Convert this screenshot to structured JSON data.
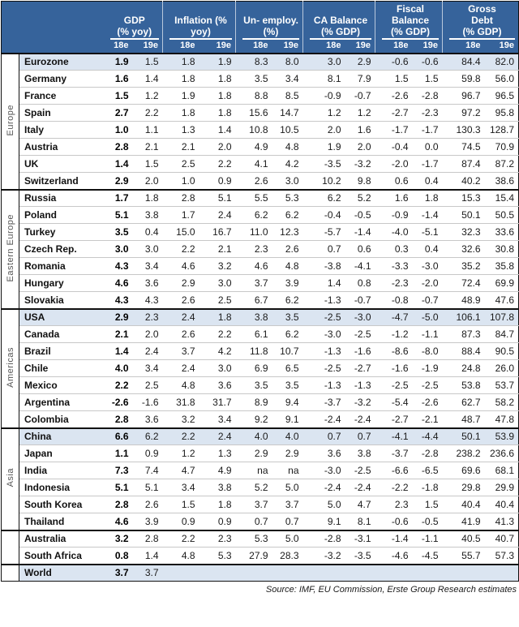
{
  "colors": {
    "header_bg": "#36639B",
    "header_text": "#FFFFFF",
    "hl": "#DBE5F1",
    "row_border": "#C8C8C8",
    "group_border": "#111111",
    "vlabel_text": "#555555",
    "page_bg": "#FFFFFF"
  },
  "footer": {
    "source": "Source: IMF, EU Commission, Erste Group Research estimates"
  },
  "table": {
    "column_groups": [
      {
        "id": "gdp",
        "label": "GDP (% yoy)",
        "label_lines": [
          "GDP",
          "(% yoy)"
        ]
      },
      {
        "id": "inflation",
        "label": "Inflation (% yoy)",
        "label_lines": [
          "Inflation (%",
          "yoy)"
        ]
      },
      {
        "id": "unemployment",
        "label": "Un- employ. (%)",
        "label_lines": [
          "Un- employ.",
          "(%)"
        ]
      },
      {
        "id": "ca_balance",
        "label": "CA Balance (% GDP)",
        "label_lines": [
          "CA Balance",
          "(% GDP)"
        ]
      },
      {
        "id": "fiscal_balance",
        "label": "Fiscal Balance (% GDP)",
        "label_lines": [
          "Fiscal",
          "Balance",
          "(% GDP)"
        ]
      },
      {
        "id": "gross_debt",
        "label": "Gross Debt (% GDP)",
        "label_lines": [
          "Gross",
          "Debt",
          "(% GDP)"
        ]
      }
    ],
    "subcolumns": [
      "18e",
      "19e"
    ],
    "groups": [
      {
        "label": "Europe",
        "rows": [
          {
            "country": "Eurozone",
            "highlight": true,
            "values": [
              "1.9",
              "1.5",
              "1.8",
              "1.9",
              "8.3",
              "8.0",
              "3.0",
              "2.9",
              "-0.6",
              "-0.6",
              "84.4",
              "82.0"
            ]
          },
          {
            "country": "Germany",
            "highlight": false,
            "values": [
              "1.6",
              "1.4",
              "1.8",
              "1.8",
              "3.5",
              "3.4",
              "8.1",
              "7.9",
              "1.5",
              "1.5",
              "59.8",
              "56.0"
            ]
          },
          {
            "country": "France",
            "highlight": false,
            "values": [
              "1.5",
              "1.2",
              "1.9",
              "1.8",
              "8.8",
              "8.5",
              "-0.9",
              "-0.7",
              "-2.6",
              "-2.8",
              "96.7",
              "96.5"
            ]
          },
          {
            "country": "Spain",
            "highlight": false,
            "values": [
              "2.7",
              "2.2",
              "1.8",
              "1.8",
              "15.6",
              "14.7",
              "1.2",
              "1.2",
              "-2.7",
              "-2.3",
              "97.2",
              "95.8"
            ]
          },
          {
            "country": "Italy",
            "highlight": false,
            "values": [
              "1.0",
              "1.1",
              "1.3",
              "1.4",
              "10.8",
              "10.5",
              "2.0",
              "1.6",
              "-1.7",
              "-1.7",
              "130.3",
              "128.7"
            ]
          },
          {
            "country": "Austria",
            "highlight": false,
            "values": [
              "2.8",
              "2.1",
              "2.1",
              "2.0",
              "4.9",
              "4.8",
              "1.9",
              "2.0",
              "-0.4",
              "0.0",
              "74.5",
              "70.9"
            ]
          },
          {
            "country": "UK",
            "highlight": false,
            "values": [
              "1.4",
              "1.5",
              "2.5",
              "2.2",
              "4.1",
              "4.2",
              "-3.5",
              "-3.2",
              "-2.0",
              "-1.7",
              "87.4",
              "87.2"
            ]
          },
          {
            "country": "Switzerland",
            "highlight": false,
            "values": [
              "2.9",
              "2.0",
              "1.0",
              "0.9",
              "2.6",
              "3.0",
              "10.2",
              "9.8",
              "0.6",
              "0.4",
              "40.2",
              "38.6"
            ]
          }
        ]
      },
      {
        "label": "Eastern Europe",
        "rows": [
          {
            "country": "Russia",
            "highlight": false,
            "values": [
              "1.7",
              "1.8",
              "2.8",
              "5.1",
              "5.5",
              "5.3",
              "6.2",
              "5.2",
              "1.6",
              "1.8",
              "15.3",
              "15.4"
            ]
          },
          {
            "country": "Poland",
            "highlight": false,
            "values": [
              "5.1",
              "3.8",
              "1.7",
              "2.4",
              "6.2",
              "6.2",
              "-0.4",
              "-0.5",
              "-0.9",
              "-1.4",
              "50.1",
              "50.5"
            ]
          },
          {
            "country": "Turkey",
            "highlight": false,
            "values": [
              "3.5",
              "0.4",
              "15.0",
              "16.7",
              "11.0",
              "12.3",
              "-5.7",
              "-1.4",
              "-4.0",
              "-5.1",
              "32.3",
              "33.6"
            ]
          },
          {
            "country": "Czech Rep.",
            "highlight": false,
            "values": [
              "3.0",
              "3.0",
              "2.2",
              "2.1",
              "2.3",
              "2.6",
              "0.7",
              "0.6",
              "0.3",
              "0.4",
              "32.6",
              "30.8"
            ]
          },
          {
            "country": "Romania",
            "highlight": false,
            "values": [
              "4.3",
              "3.4",
              "4.6",
              "3.2",
              "4.6",
              "4.8",
              "-3.8",
              "-4.1",
              "-3.3",
              "-3.0",
              "35.2",
              "35.8"
            ]
          },
          {
            "country": "Hungary",
            "highlight": false,
            "values": [
              "4.6",
              "3.6",
              "2.9",
              "3.0",
              "3.7",
              "3.9",
              "1.4",
              "0.8",
              "-2.3",
              "-2.0",
              "72.4",
              "69.9"
            ]
          },
          {
            "country": "Slovakia",
            "highlight": false,
            "values": [
              "4.3",
              "4.3",
              "2.6",
              "2.5",
              "6.7",
              "6.2",
              "-1.3",
              "-0.7",
              "-0.8",
              "-0.7",
              "48.9",
              "47.6"
            ]
          }
        ]
      },
      {
        "label": "Americas",
        "rows": [
          {
            "country": "USA",
            "highlight": true,
            "values": [
              "2.9",
              "2.3",
              "2.4",
              "1.8",
              "3.8",
              "3.5",
              "-2.5",
              "-3.0",
              "-4.7",
              "-5.0",
              "106.1",
              "107.8"
            ]
          },
          {
            "country": "Canada",
            "highlight": false,
            "values": [
              "2.1",
              "2.0",
              "2.6",
              "2.2",
              "6.1",
              "6.2",
              "-3.0",
              "-2.5",
              "-1.2",
              "-1.1",
              "87.3",
              "84.7"
            ]
          },
          {
            "country": "Brazil",
            "highlight": false,
            "values": [
              "1.4",
              "2.4",
              "3.7",
              "4.2",
              "11.8",
              "10.7",
              "-1.3",
              "-1.6",
              "-8.6",
              "-8.0",
              "88.4",
              "90.5"
            ]
          },
          {
            "country": "Chile",
            "highlight": false,
            "values": [
              "4.0",
              "3.4",
              "2.4",
              "3.0",
              "6.9",
              "6.5",
              "-2.5",
              "-2.7",
              "-1.6",
              "-1.9",
              "24.8",
              "26.0"
            ]
          },
          {
            "country": "Mexico",
            "highlight": false,
            "values": [
              "2.2",
              "2.5",
              "4.8",
              "3.6",
              "3.5",
              "3.5",
              "-1.3",
              "-1.3",
              "-2.5",
              "-2.5",
              "53.8",
              "53.7"
            ]
          },
          {
            "country": "Argentina",
            "highlight": false,
            "values": [
              "-2.6",
              "-1.6",
              "31.8",
              "31.7",
              "8.9",
              "9.4",
              "-3.7",
              "-3.2",
              "-5.4",
              "-2.6",
              "62.7",
              "58.2"
            ]
          },
          {
            "country": "Colombia",
            "highlight": false,
            "values": [
              "2.8",
              "3.6",
              "3.2",
              "3.4",
              "9.2",
              "9.1",
              "-2.4",
              "-2.4",
              "-2.7",
              "-2.1",
              "48.7",
              "47.8"
            ]
          }
        ]
      },
      {
        "label": "Asia",
        "rows": [
          {
            "country": "China",
            "highlight": true,
            "values": [
              "6.6",
              "6.2",
              "2.2",
              "2.4",
              "4.0",
              "4.0",
              "0.7",
              "0.7",
              "-4.1",
              "-4.4",
              "50.1",
              "53.9"
            ]
          },
          {
            "country": "Japan",
            "highlight": false,
            "values": [
              "1.1",
              "0.9",
              "1.2",
              "1.3",
              "2.9",
              "2.9",
              "3.6",
              "3.8",
              "-3.7",
              "-2.8",
              "238.2",
              "236.6"
            ]
          },
          {
            "country": "India",
            "highlight": false,
            "values": [
              "7.3",
              "7.4",
              "4.7",
              "4.9",
              "na",
              "na",
              "-3.0",
              "-2.5",
              "-6.6",
              "-6.5",
              "69.6",
              "68.1"
            ]
          },
          {
            "country": "Indonesia",
            "highlight": false,
            "values": [
              "5.1",
              "5.1",
              "3.4",
              "3.8",
              "5.2",
              "5.0",
              "-2.4",
              "-2.4",
              "-2.2",
              "-1.8",
              "29.8",
              "29.9"
            ]
          },
          {
            "country": "South Korea",
            "highlight": false,
            "values": [
              "2.8",
              "2.6",
              "1.5",
              "1.8",
              "3.7",
              "3.7",
              "5.0",
              "4.7",
              "2.3",
              "1.5",
              "40.4",
              "40.4"
            ]
          },
          {
            "country": "Thailand",
            "highlight": false,
            "values": [
              "4.6",
              "3.9",
              "0.9",
              "0.9",
              "0.7",
              "0.7",
              "9.1",
              "8.1",
              "-0.6",
              "-0.5",
              "41.9",
              "41.3"
            ]
          }
        ]
      },
      {
        "label": "",
        "rows": [
          {
            "country": "Australia",
            "highlight": false,
            "values": [
              "3.2",
              "2.8",
              "2.2",
              "2.3",
              "5.3",
              "5.0",
              "-2.8",
              "-3.1",
              "-1.4",
              "-1.1",
              "40.5",
              "40.7"
            ]
          },
          {
            "country": "South Africa",
            "highlight": false,
            "values": [
              "0.8",
              "1.4",
              "4.8",
              "5.3",
              "27.9",
              "28.3",
              "-3.2",
              "-3.5",
              "-4.6",
              "-4.5",
              "55.7",
              "57.3"
            ]
          }
        ]
      },
      {
        "label": "",
        "rows": [
          {
            "country": "World",
            "highlight": true,
            "values": [
              "3.7",
              "3.7",
              "",
              "",
              "",
              "",
              "",
              "",
              "",
              "",
              "",
              ""
            ]
          }
        ]
      }
    ]
  }
}
